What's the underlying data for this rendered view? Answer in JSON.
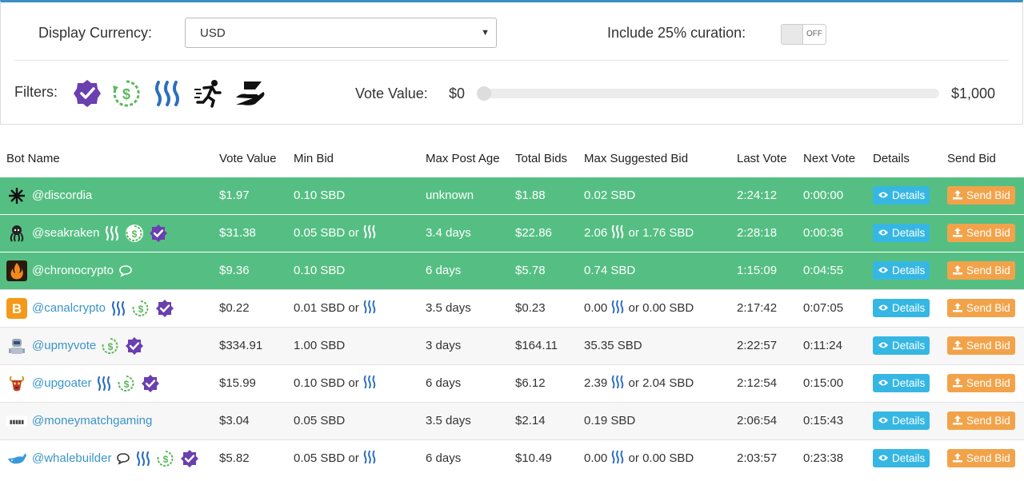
{
  "settings": {
    "currency_label": "Display Currency:",
    "currency_value": "USD",
    "curation_label": "Include 25% curation:",
    "curation_toggle": "OFF"
  },
  "filters": {
    "label": "Filters:",
    "icons": [
      "verified-icon",
      "refund-icon",
      "steem-icon",
      "runner-icon",
      "hand-giving-icon"
    ],
    "vote_value_label": "Vote Value:",
    "vote_min": "$0",
    "vote_max": "$1,000"
  },
  "table": {
    "headers": {
      "bot": "Bot Name",
      "vote_value": "Vote Value",
      "min_bid": "Min Bid",
      "max_post_age": "Max Post Age",
      "total_bids": "Total Bids",
      "max_suggested": "Max Suggested Bid",
      "last_vote": "Last Vote",
      "next_vote": "Next Vote",
      "details": "Details",
      "send_bid": "Send Bid"
    },
    "details_label": "Details",
    "send_label": "Send Bid",
    "or": "or",
    "rows": [
      {
        "bot": "@discordia",
        "vote_value": "$1.97",
        "min_bid": "0.10 SBD",
        "max_post_age": "unknown",
        "total_bids": "$1.88",
        "max_suggested": "0.02 SBD",
        "last_vote": "2:24:12",
        "next_vote": "0:00:00"
      },
      {
        "bot": "@seakraken",
        "vote_value": "$31.38",
        "min_bid": "0.05 SBD",
        "max_post_age": "3.4 days",
        "total_bids": "$22.86",
        "max_suggested_a": "2.06",
        "max_suggested_b": "1.76 SBD",
        "last_vote": "2:28:18",
        "next_vote": "0:00:36"
      },
      {
        "bot": "@chronocrypto",
        "vote_value": "$9.36",
        "min_bid": "0.10 SBD",
        "max_post_age": "6 days",
        "total_bids": "$5.78",
        "max_suggested": "0.74 SBD",
        "last_vote": "1:15:09",
        "next_vote": "0:04:55"
      },
      {
        "bot": "@canalcrypto",
        "vote_value": "$0.22",
        "min_bid": "0.01 SBD",
        "max_post_age": "3.5 days",
        "total_bids": "$0.23",
        "max_suggested_a": "0.00",
        "max_suggested_b": "0.00 SBD",
        "last_vote": "2:17:42",
        "next_vote": "0:07:05"
      },
      {
        "bot": "@upmyvote",
        "vote_value": "$334.91",
        "min_bid": "1.00 SBD",
        "max_post_age": "3 days",
        "total_bids": "$164.11",
        "max_suggested": "35.35 SBD",
        "last_vote": "2:22:57",
        "next_vote": "0:11:24"
      },
      {
        "bot": "@upgoater",
        "vote_value": "$15.99",
        "min_bid": "0.10 SBD",
        "max_post_age": "6 days",
        "total_bids": "$6.12",
        "max_suggested_a": "2.39",
        "max_suggested_b": "2.04 SBD",
        "last_vote": "2:12:54",
        "next_vote": "0:15:00"
      },
      {
        "bot": "@moneymatchgaming",
        "vote_value": "$3.04",
        "min_bid": "0.05 SBD",
        "max_post_age": "3.5 days",
        "total_bids": "$2.14",
        "max_suggested": "0.19 SBD",
        "last_vote": "2:06:54",
        "next_vote": "0:15:43"
      },
      {
        "bot": "@whalebuilder",
        "vote_value": "$5.82",
        "min_bid": "0.05 SBD",
        "max_post_age": "6 days",
        "total_bids": "$10.49",
        "max_suggested_a": "0.00",
        "max_suggested_b": "0.00 SBD",
        "last_vote": "2:03:57",
        "next_vote": "0:23:38"
      }
    ]
  },
  "colors": {
    "active_row": "#55bf83",
    "details_button": "#36b7e3",
    "send_button": "#f2a34a",
    "link": "#3b95c8",
    "verified": "#6a3fb0",
    "refund": "#5cb85c",
    "steem": "#2d6fbf"
  }
}
